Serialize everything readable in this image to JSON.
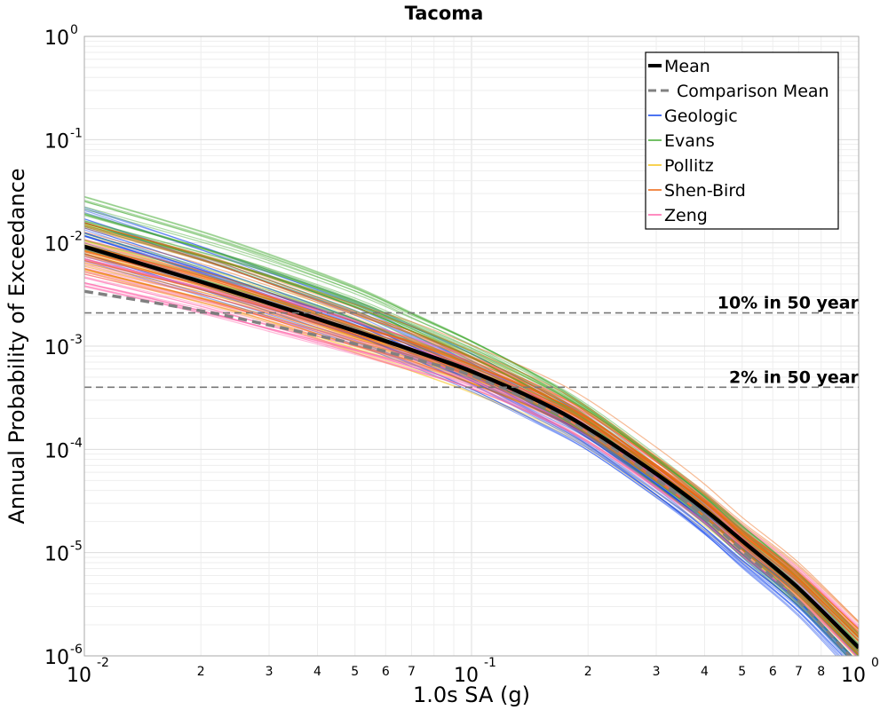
{
  "chart_data": {
    "type": "line",
    "title": "Tacoma",
    "xlabel": "1.0s SA (g)",
    "ylabel": "Annual Probability of Exceedance",
    "x_scale": "log",
    "y_scale": "log",
    "xlim": [
      0.01,
      1.0
    ],
    "ylim": [
      1e-06,
      1.0
    ],
    "grid": true,
    "legend_position": "top-right",
    "x_ticks_major": [
      {
        "base": "10",
        "exp": "-2"
      },
      {
        "base": "10",
        "exp": "-1"
      },
      {
        "base": "10",
        "exp": "0"
      }
    ],
    "x_ticks_minor": [
      {
        "value": 0.02,
        "label": "2"
      },
      {
        "value": 0.03,
        "label": "3"
      },
      {
        "value": 0.04,
        "label": "4"
      },
      {
        "value": 0.05,
        "label": "5"
      },
      {
        "value": 0.06,
        "label": "6"
      },
      {
        "value": 0.07,
        "label": "7"
      },
      {
        "value": 0.2,
        "label": "2"
      },
      {
        "value": 0.3,
        "label": "3"
      },
      {
        "value": 0.4,
        "label": "4"
      },
      {
        "value": 0.5,
        "label": "5"
      },
      {
        "value": 0.6,
        "label": "6"
      },
      {
        "value": 0.7,
        "label": "7"
      },
      {
        "value": 0.8,
        "label": "8"
      }
    ],
    "y_ticks_major": [
      {
        "base": "10",
        "exp": "0"
      },
      {
        "base": "10",
        "exp": "-1"
      },
      {
        "base": "10",
        "exp": "-2"
      },
      {
        "base": "10",
        "exp": "-3"
      },
      {
        "base": "10",
        "exp": "-4"
      },
      {
        "base": "10",
        "exp": "-5"
      },
      {
        "base": "10",
        "exp": "-6"
      }
    ],
    "x": [
      0.01,
      0.02,
      0.03,
      0.05,
      0.07,
      0.1,
      0.15,
      0.2,
      0.3,
      0.4,
      0.5,
      0.7,
      1.0
    ],
    "series": [
      {
        "name": "Mean",
        "style": "solid",
        "color": "#000000",
        "values": [
          0.0092,
          0.0042,
          0.0026,
          0.0014,
          0.00092,
          0.00057,
          0.00029,
          0.00016,
          5.8e-05,
          2.6e-05,
          1.3e-05,
          4.5e-06,
          1.2e-06
        ]
      },
      {
        "name": "Comparison Mean",
        "style": "dashed",
        "color": "#808080",
        "values": [
          0.0034,
          0.0022,
          0.0016,
          0.00105,
          0.00076,
          0.00052,
          0.00027,
          0.00015,
          5.2e-05,
          2.2e-05,
          1.05e-05,
          3.4e-06,
          8e-07
        ]
      },
      {
        "name": "Geologic",
        "style": "band",
        "color": "#1144ee",
        "values": [
          0.0125,
          0.0055,
          0.0033,
          0.0017,
          0.001,
          0.00055,
          0.00025,
          0.000135,
          4.6e-05,
          2e-05,
          9.7e-06,
          3.4e-06,
          8.5e-07
        ]
      },
      {
        "name": "Evans",
        "style": "band",
        "color": "#44aa33",
        "values": [
          0.0155,
          0.0075,
          0.0047,
          0.0024,
          0.0014,
          0.00078,
          0.00036,
          0.00019,
          6.3e-05,
          2.7e-05,
          1.3e-05,
          4.4e-06,
          1.1e-06
        ]
      },
      {
        "name": "Pollitz",
        "style": "band",
        "color": "#f5c218",
        "values": [
          0.0085,
          0.0042,
          0.0026,
          0.0013,
          0.00085,
          0.00052,
          0.00027,
          0.00015,
          5.2e-05,
          2.4e-05,
          1.2e-05,
          4.5e-06,
          1.2e-06
        ]
      },
      {
        "name": "Shen-Bird",
        "style": "band",
        "color": "#ee6611",
        "values": [
          0.0095,
          0.0048,
          0.003,
          0.0016,
          0.0011,
          0.00066,
          0.00035,
          0.0002,
          7e-05,
          3.1e-05,
          1.5e-05,
          5.5e-06,
          1.5e-06
        ]
      },
      {
        "name": "Zeng",
        "style": "band",
        "color": "#ff66aa",
        "values": [
          0.007,
          0.0037,
          0.0024,
          0.0014,
          0.00095,
          0.00062,
          0.00032,
          0.00018,
          6.4e-05,
          2.9e-05,
          1.4e-05,
          5.2e-06,
          1.4e-06
        ]
      }
    ],
    "reference_lines": [
      {
        "label": "10% in 50 year",
        "y": 0.0021
      },
      {
        "label": "2% in 50 year",
        "y": 0.0004
      }
    ]
  }
}
